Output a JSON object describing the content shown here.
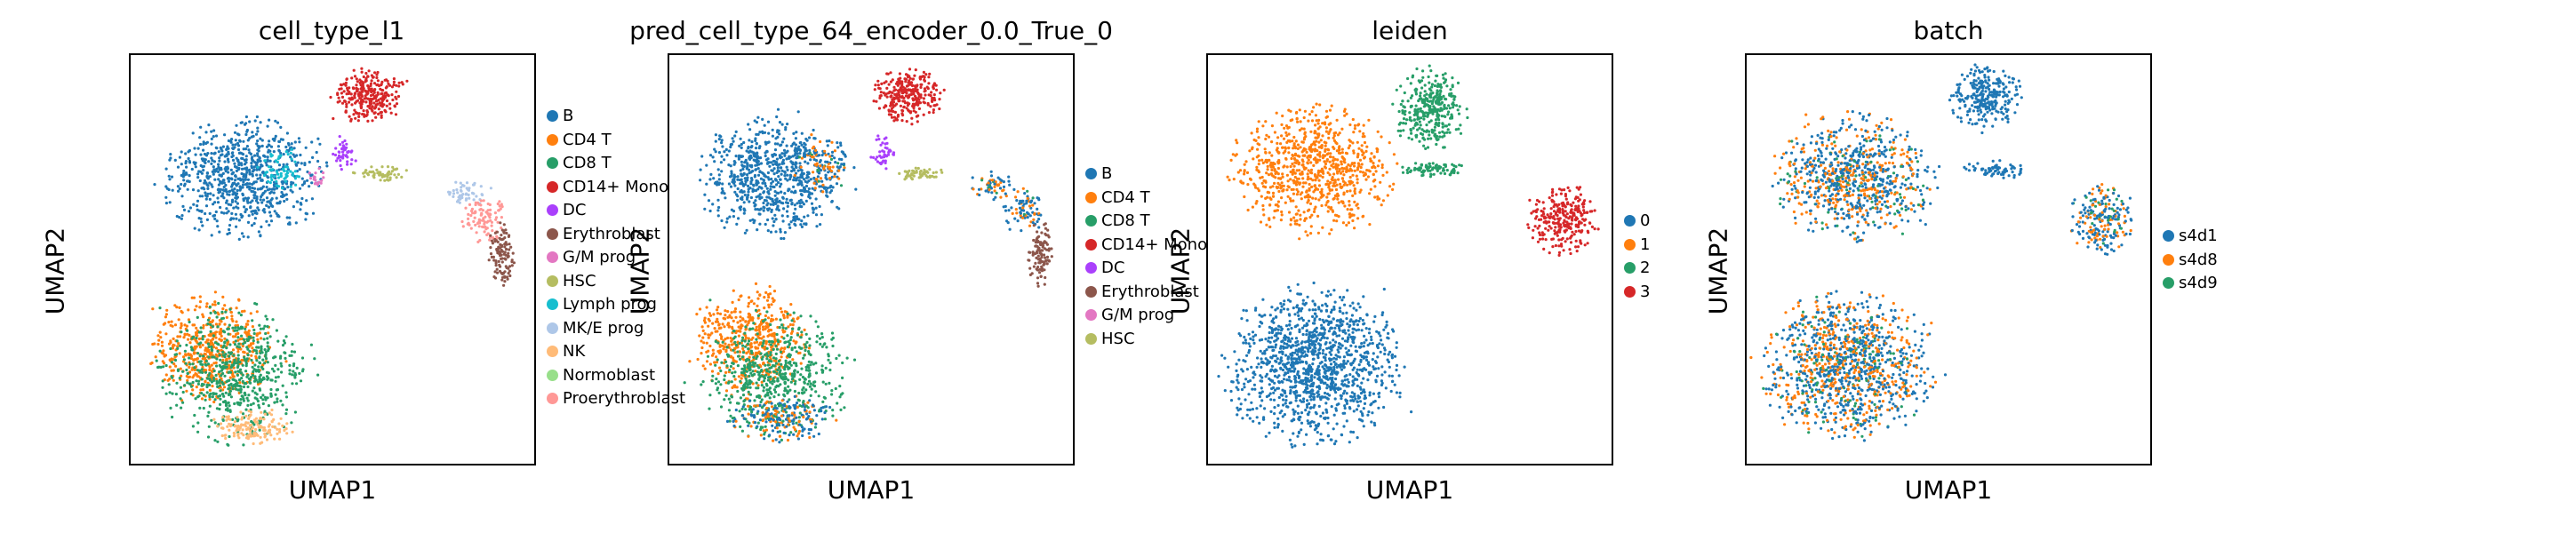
{
  "chart_data": [
    {
      "type": "scatter",
      "title": "cell_type_l1",
      "xlabel": "UMAP1",
      "ylabel": "UMAP2",
      "legend_placement": "right",
      "legend": [
        {
          "name": "B",
          "color": "#1f77b4"
        },
        {
          "name": "CD4 T",
          "color": "#ff7f0e"
        },
        {
          "name": "CD8 T",
          "color": "#279e68"
        },
        {
          "name": "CD14+ Mono",
          "color": "#d62728"
        },
        {
          "name": "DC",
          "color": "#aa40fc"
        },
        {
          "name": "Erythroblast",
          "color": "#8c564b"
        },
        {
          "name": "G/M prog",
          "color": "#e377c2"
        },
        {
          "name": "HSC",
          "color": "#b5bd61"
        },
        {
          "name": "Lymph prog",
          "color": "#17becf"
        },
        {
          "name": "MK/E prog",
          "color": "#aec7e8"
        },
        {
          "name": "NK",
          "color": "#ffbb78"
        },
        {
          "name": "Normoblast",
          "color": "#98df8a"
        },
        {
          "name": "Proerythroblast",
          "color": "#ff9896"
        }
      ],
      "clusters": [
        {
          "label": "B",
          "cx": 0.28,
          "cy": 0.3,
          "rx": 0.18,
          "ry": 0.13,
          "n": 1400
        },
        {
          "label": "Lymph prog",
          "cx": 0.37,
          "cy": 0.28,
          "rx": 0.05,
          "ry": 0.05,
          "n": 120
        },
        {
          "label": "CD14+ Mono",
          "cx": 0.59,
          "cy": 0.1,
          "rx": 0.08,
          "ry": 0.06,
          "n": 500
        },
        {
          "label": "DC",
          "cx": 0.53,
          "cy": 0.24,
          "rx": 0.03,
          "ry": 0.04,
          "n": 80
        },
        {
          "label": "HSC",
          "cx": 0.62,
          "cy": 0.29,
          "rx": 0.06,
          "ry": 0.015,
          "n": 100
        },
        {
          "label": "MK/E prog",
          "cx": 0.83,
          "cy": 0.34,
          "rx": 0.05,
          "ry": 0.03,
          "n": 90
        },
        {
          "label": "Proerythroblast",
          "cx": 0.88,
          "cy": 0.4,
          "rx": 0.05,
          "ry": 0.05,
          "n": 180
        },
        {
          "label": "Erythroblast",
          "cx": 0.92,
          "cy": 0.49,
          "rx": 0.03,
          "ry": 0.07,
          "n": 200
        },
        {
          "label": "CD4 T",
          "cx": 0.2,
          "cy": 0.72,
          "rx": 0.14,
          "ry": 0.12,
          "n": 900
        },
        {
          "label": "CD8 T",
          "cx": 0.26,
          "cy": 0.78,
          "rx": 0.17,
          "ry": 0.15,
          "n": 1100
        },
        {
          "label": "NK",
          "cx": 0.3,
          "cy": 0.91,
          "rx": 0.1,
          "ry": 0.04,
          "n": 250
        },
        {
          "label": "G/M prog",
          "cx": 0.46,
          "cy": 0.3,
          "rx": 0.02,
          "ry": 0.02,
          "n": 30
        }
      ]
    },
    {
      "type": "scatter",
      "title": "pred_cell_type_64_encoder_0.0_True_0",
      "xlabel": "UMAP1",
      "ylabel": "UMAP2",
      "legend_placement": "right",
      "legend": [
        {
          "name": "B",
          "color": "#1f77b4"
        },
        {
          "name": "CD4 T",
          "color": "#ff7f0e"
        },
        {
          "name": "CD8 T",
          "color": "#279e68"
        },
        {
          "name": "CD14+ Mono",
          "color": "#d62728"
        },
        {
          "name": "DC",
          "color": "#aa40fc"
        },
        {
          "name": "Erythroblast",
          "color": "#8c564b"
        },
        {
          "name": "G/M prog",
          "color": "#e377c2"
        },
        {
          "name": "HSC",
          "color": "#b5bd61"
        }
      ],
      "clusters": [
        {
          "label": "B",
          "cx": 0.25,
          "cy": 0.3,
          "rx": 0.16,
          "ry": 0.13,
          "n": 1300
        },
        {
          "label": "Proerythroblast",
          "cx": 0.37,
          "cy": 0.27,
          "rx": 0.07,
          "ry": 0.07,
          "n": 250
        },
        {
          "label": "CD14+ Mono",
          "cx": 0.59,
          "cy": 0.1,
          "rx": 0.08,
          "ry": 0.06,
          "n": 500
        },
        {
          "label": "DC",
          "cx": 0.53,
          "cy": 0.24,
          "rx": 0.03,
          "ry": 0.04,
          "n": 80
        },
        {
          "label": "HSC",
          "cx": 0.62,
          "cy": 0.29,
          "rx": 0.06,
          "ry": 0.015,
          "n": 100
        },
        {
          "label": "Normoblast",
          "cx": 0.8,
          "cy": 0.32,
          "rx": 0.05,
          "ry": 0.03,
          "n": 100
        },
        {
          "label": "MK/E prog",
          "cx": 0.88,
          "cy": 0.38,
          "rx": 0.05,
          "ry": 0.05,
          "n": 150
        },
        {
          "label": "Erythroblast",
          "cx": 0.92,
          "cy": 0.49,
          "rx": 0.03,
          "ry": 0.07,
          "n": 200
        },
        {
          "label": "CD4 T",
          "cx": 0.2,
          "cy": 0.7,
          "rx": 0.13,
          "ry": 0.12,
          "n": 900
        },
        {
          "label": "CD8 T",
          "cx": 0.26,
          "cy": 0.78,
          "rx": 0.16,
          "ry": 0.14,
          "n": 1000
        },
        {
          "label": "Proerythroblast",
          "cx": 0.28,
          "cy": 0.89,
          "rx": 0.12,
          "ry": 0.05,
          "n": 400
        }
      ]
    },
    {
      "type": "scatter",
      "title": "leiden",
      "xlabel": "UMAP1",
      "ylabel": "UMAP2",
      "legend_placement": "right",
      "legend": [
        {
          "name": "0",
          "color": "#1f77b4"
        },
        {
          "name": "1",
          "color": "#ff7f0e"
        },
        {
          "name": "2",
          "color": "#279e68"
        },
        {
          "name": "3",
          "color": "#d62728"
        }
      ],
      "clusters": [
        {
          "label": "1",
          "cx": 0.26,
          "cy": 0.28,
          "rx": 0.18,
          "ry": 0.14,
          "n": 1500
        },
        {
          "label": "2",
          "cx": 0.55,
          "cy": 0.13,
          "rx": 0.08,
          "ry": 0.09,
          "n": 600
        },
        {
          "label": "2",
          "cx": 0.56,
          "cy": 0.28,
          "rx": 0.07,
          "ry": 0.02,
          "n": 150
        },
        {
          "label": "3",
          "cx": 0.88,
          "cy": 0.4,
          "rx": 0.08,
          "ry": 0.08,
          "n": 500
        },
        {
          "label": "0",
          "cx": 0.26,
          "cy": 0.76,
          "rx": 0.2,
          "ry": 0.17,
          "n": 2300
        }
      ]
    },
    {
      "type": "scatter",
      "title": "batch",
      "xlabel": "UMAP1",
      "ylabel": "UMAP2",
      "legend_placement": "right",
      "legend": [
        {
          "name": "s4d1",
          "color": "#1f77b4"
        },
        {
          "name": "s4d8",
          "color": "#ff7f0e"
        },
        {
          "name": "s4d9",
          "color": "#279e68"
        }
      ],
      "clusters": [
        {
          "label": "mix",
          "cx": 0.27,
          "cy": 0.3,
          "rx": 0.18,
          "ry": 0.14,
          "n": 1600
        },
        {
          "label": "s4d1",
          "cx": 0.59,
          "cy": 0.1,
          "rx": 0.08,
          "ry": 0.07,
          "n": 500
        },
        {
          "label": "s4d1",
          "cx": 0.62,
          "cy": 0.28,
          "rx": 0.07,
          "ry": 0.02,
          "n": 120
        },
        {
          "label": "mix",
          "cx": 0.88,
          "cy": 0.4,
          "rx": 0.07,
          "ry": 0.08,
          "n": 400
        },
        {
          "label": "mix",
          "cx": 0.25,
          "cy": 0.76,
          "rx": 0.19,
          "ry": 0.16,
          "n": 2200
        }
      ]
    }
  ]
}
